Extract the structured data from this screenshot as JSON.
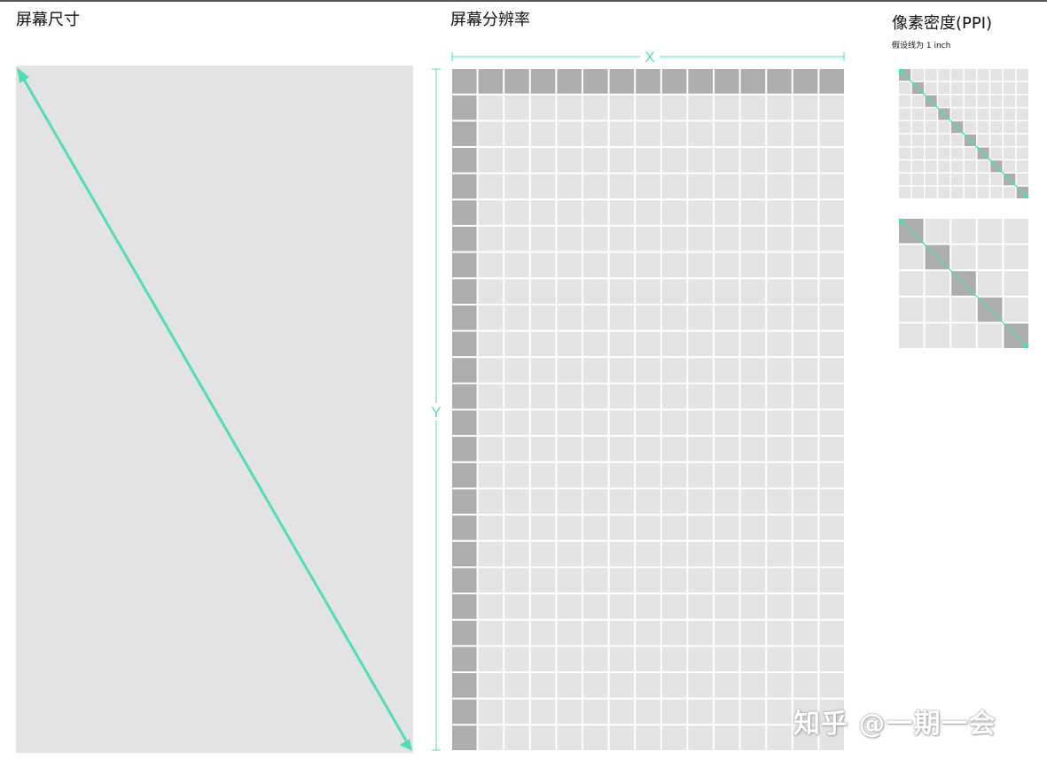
{
  "titles": {
    "screen_size": "屏幕尺寸",
    "resolution": "屏幕分辨率",
    "ppi": "像素密度(PPI)",
    "ppi_note": "假设线为 1 inch"
  },
  "axes": {
    "x_label": "X",
    "y_label": "Y"
  },
  "resolution_grid": {
    "columns": 15,
    "rows": 26
  },
  "ppi_grids": [
    {
      "name": "high-density",
      "cells_per_inch": 10
    },
    {
      "name": "low-density",
      "cells_per_inch": 5
    }
  ],
  "colors": {
    "accent": "#4fdcb8",
    "screen_fill": "#e3e3e3",
    "pixel_fill": "#e3e3e3",
    "pixel_highlight": "#adadad",
    "grid_gap": "#ffffff"
  },
  "watermark": "知乎 @一期一会"
}
